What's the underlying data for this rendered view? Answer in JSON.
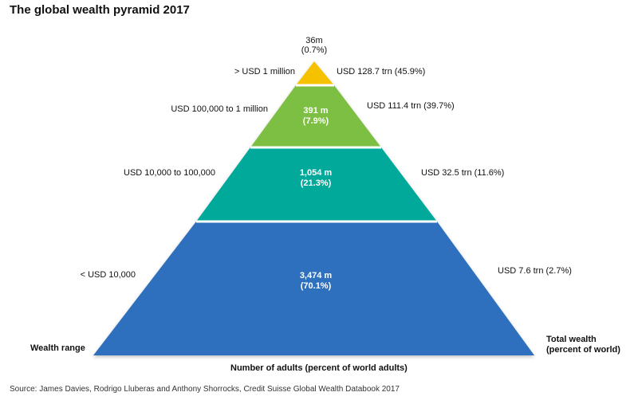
{
  "title": "The global wealth pyramid 2017",
  "chart_data": {
    "type": "pyramid",
    "tiers": [
      {
        "wealth_range": "< USD 10,000",
        "adults": "3,474 m",
        "adults_pct": "(70.1%)",
        "total_wealth": "USD 7.6 trn (2.7%)",
        "color": "#2e6fbd"
      },
      {
        "wealth_range": "USD 10,000  to 100,000",
        "adults": "1,054 m",
        "adults_pct": "(21.3%)",
        "total_wealth": "USD 32.5 trn (11.6%)",
        "color": "#00a99a"
      },
      {
        "wealth_range": "USD 100,000  to 1 million",
        "adults": "391 m",
        "adults_pct": "(7.9%)",
        "total_wealth": "USD 111.4 trn (39.7%)",
        "color": "#7cbf42"
      },
      {
        "wealth_range": "> USD 1 million",
        "adults": "36m",
        "adults_pct": "(0.7%)",
        "total_wealth": "USD 128.7 trn (45.9%)",
        "color": "#f6c200"
      }
    ],
    "axis_left_label": "Wealth range",
    "axis_bottom_label": "Number of adults (percent of world adults)",
    "axis_right_label_line1": "Total wealth",
    "axis_right_label_line2": "(percent of world)"
  },
  "source": "Source: James Davies, Rodrigo Lluberas and Anthony Shorrocks, Credit Suisse Global Wealth Databook 2017"
}
